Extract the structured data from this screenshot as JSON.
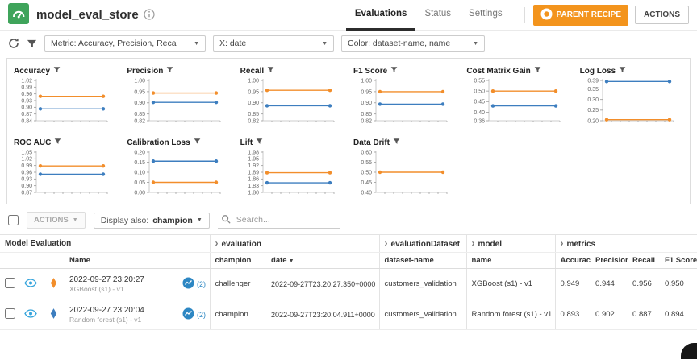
{
  "app": {
    "title": "model_eval_store",
    "tabs": [
      {
        "label": "Evaluations",
        "active": true
      },
      {
        "label": "Status",
        "active": false
      },
      {
        "label": "Settings",
        "active": false
      }
    ],
    "parent_recipe_label": "PARENT RECIPE",
    "actions_label": "ACTIONS"
  },
  "toolbar": {
    "metric_dropdown": "Metric: Accuracy, Precision, Reca",
    "x_dropdown": "X: date",
    "color_dropdown": "Color: dataset-name, name"
  },
  "colors": {
    "orange": "#f28e2b",
    "blue": "#3d7ebf",
    "eye": "#35a4dc",
    "badge": "#2d87c3",
    "parent_recipe_bg": "#f3941d",
    "logo_green": "#3fa45b"
  },
  "charts": {
    "type": "line",
    "x_field": "date",
    "items": [
      {
        "title": "Accuracy",
        "ylim": [
          0.84,
          1.02
        ],
        "ticks": [
          "1.02",
          "0.99",
          "0.96",
          "0.93",
          "0.90",
          "0.87",
          "0.84"
        ],
        "series": [
          {
            "name": "XGBoost (s1) - v1",
            "color": "orange",
            "value": 0.949
          },
          {
            "name": "Random forest (s1) - v1",
            "color": "blue",
            "value": 0.893
          }
        ]
      },
      {
        "title": "Precision",
        "ylim": [
          0.82,
          1.0
        ],
        "ticks": [
          "1.00",
          "0.95",
          "0.90",
          "0.85",
          "0.82"
        ],
        "series": [
          {
            "name": "XGBoost (s1) - v1",
            "color": "orange",
            "value": 0.944
          },
          {
            "name": "Random forest (s1) - v1",
            "color": "blue",
            "value": 0.902
          }
        ]
      },
      {
        "title": "Recall",
        "ylim": [
          0.82,
          1.0
        ],
        "ticks": [
          "1.00",
          "0.95",
          "0.90",
          "0.85",
          "0.82"
        ],
        "series": [
          {
            "name": "XGBoost (s1) - v1",
            "color": "orange",
            "value": 0.956
          },
          {
            "name": "Random forest (s1) - v1",
            "color": "blue",
            "value": 0.887
          }
        ]
      },
      {
        "title": "F1 Score",
        "ylim": [
          0.82,
          1.0
        ],
        "ticks": [
          "1.00",
          "0.95",
          "0.90",
          "0.85",
          "0.82"
        ],
        "series": [
          {
            "name": "XGBoost (s1) - v1",
            "color": "orange",
            "value": 0.95
          },
          {
            "name": "Random forest (s1) - v1",
            "color": "blue",
            "value": 0.894
          }
        ]
      },
      {
        "title": "Cost Matrix Gain",
        "ylim": [
          0.36,
          0.55
        ],
        "ticks": [
          "0.55",
          "0.50",
          "0.45",
          "0.40",
          "0.36"
        ],
        "series": [
          {
            "name": "XGBoost (s1) - v1",
            "color": "orange",
            "value": 0.5
          },
          {
            "name": "Random forest (s1) - v1",
            "color": "blue",
            "value": 0.43
          }
        ]
      },
      {
        "title": "Log Loss",
        "ylim": [
          0.2,
          0.39
        ],
        "ticks": [
          "0.39",
          "0.35",
          "0.30",
          "0.25",
          "0.20"
        ],
        "series": [
          {
            "name": "Random forest (s1) - v1",
            "color": "blue",
            "value": 0.385
          },
          {
            "name": "XGBoost (s1) - v1",
            "color": "orange",
            "value": 0.205
          }
        ]
      },
      {
        "title": "ROC AUC",
        "ylim": [
          0.87,
          1.05
        ],
        "ticks": [
          "1.05",
          "1.02",
          "0.99",
          "0.96",
          "0.93",
          "0.90",
          "0.87"
        ],
        "series": [
          {
            "name": "XGBoost (s1) - v1",
            "color": "orange",
            "value": 0.988
          },
          {
            "name": "Random forest (s1) - v1",
            "color": "blue",
            "value": 0.951
          }
        ]
      },
      {
        "title": "Calibration Loss",
        "ylim": [
          0.0,
          0.2
        ],
        "ticks": [
          "0.20",
          "0.15",
          "0.10",
          "0.05",
          "0.00"
        ],
        "series": [
          {
            "name": "Random forest (s1) - v1",
            "color": "blue",
            "value": 0.155
          },
          {
            "name": "XGBoost (s1) - v1",
            "color": "orange",
            "value": 0.05
          }
        ]
      },
      {
        "title": "Lift",
        "ylim": [
          1.8,
          1.98
        ],
        "ticks": [
          "1.98",
          "1.95",
          "1.92",
          "1.89",
          "1.86",
          "1.83",
          "1.80"
        ],
        "series": [
          {
            "name": "XGBoost (s1) - v1",
            "color": "orange",
            "value": 1.888
          },
          {
            "name": "Random forest (s1) - v1",
            "color": "blue",
            "value": 1.843
          }
        ]
      },
      {
        "title": "Data Drift",
        "ylim": [
          0.4,
          0.6
        ],
        "ticks": [
          "0.60",
          "0.55",
          "0.50",
          "0.45",
          "0.40"
        ],
        "series": [
          {
            "name": "XGBoost (s1) - v1",
            "color": "orange",
            "value": 0.5
          }
        ]
      }
    ]
  },
  "controls": {
    "bulk_actions_label": "ACTIONS",
    "display_also_label": "Display also:",
    "display_also_value": "champion",
    "search_placeholder": "Search..."
  },
  "table": {
    "group_headers": [
      {
        "label": "Model Evaluation",
        "chevron": false
      },
      {
        "label": "evaluation",
        "chevron": true
      },
      {
        "label": "evaluationDataset",
        "chevron": true
      },
      {
        "label": "model",
        "chevron": true
      },
      {
        "label": "metrics",
        "chevron": true
      }
    ],
    "columns": {
      "name": "Name",
      "champion": "champion",
      "date": "date",
      "dataset": "dataset-name",
      "model": "name",
      "accuracy": "Accuracy",
      "precision": "Precision",
      "recall": "Recall",
      "f1": "F1 Score"
    },
    "rows": [
      {
        "name": "2022-09-27 23:20:27",
        "model_label": "XGBoost (s1) - v1",
        "versions": "(2)",
        "marker_color": "orange",
        "champion": "challenger",
        "date": "2022-09-27T23:20:27.350+0000",
        "dataset_name": "customers_validation",
        "model_name": "XGBoost (s1) - v1",
        "accuracy": "0.949",
        "precision": "0.944",
        "recall": "0.956",
        "f1": "0.950"
      },
      {
        "name": "2022-09-27 23:20:04",
        "model_label": "Random forest (s1) - v1",
        "versions": "(2)",
        "marker_color": "blue",
        "champion": "champion",
        "date": "2022-09-27T23:20:04.911+0000",
        "dataset_name": "customers_validation",
        "model_name": "Random forest (s1) - v1",
        "accuracy": "0.893",
        "precision": "0.902",
        "recall": "0.887",
        "f1": "0.894"
      }
    ]
  }
}
